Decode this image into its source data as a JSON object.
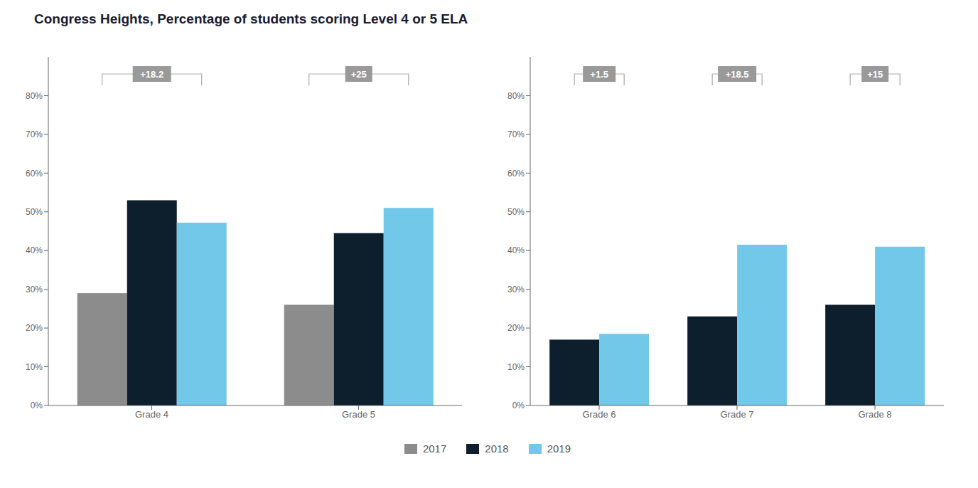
{
  "chart_data": [
    {
      "type": "bar",
      "title": "Congress Heights, Percentage of students scoring Level 4 or 5 ELA",
      "categories": [
        "Grade 4",
        "Grade 5"
      ],
      "series": [
        {
          "name": "2017",
          "color": "#8c8c8c",
          "values": [
            0.29,
            0.26
          ]
        },
        {
          "name": "2018",
          "color": "#0d1f2d",
          "values": [
            0.53,
            0.445
          ]
        },
        {
          "name": "2019",
          "color": "#72c8e8",
          "values": [
            0.472,
            0.51
          ]
        }
      ],
      "annotations": [
        "+18.2",
        "+25"
      ],
      "ylim": [
        0,
        0.9
      ],
      "yticks": [
        {
          "value": 0,
          "label": "0%"
        },
        {
          "value": 0.1,
          "label": "10%"
        },
        {
          "value": 0.2,
          "label": "20%"
        },
        {
          "value": 0.3,
          "label": "30%"
        },
        {
          "value": 0.4,
          "label": "40%"
        },
        {
          "value": 0.5,
          "label": "50%"
        },
        {
          "value": 0.6,
          "label": "60%"
        },
        {
          "value": 0.7,
          "label": "70%"
        },
        {
          "value": 0.8,
          "label": "80%"
        }
      ],
      "grid": false,
      "legend": "bottom"
    },
    {
      "type": "bar",
      "categories": [
        "Grade 6",
        "Grade 7",
        "Grade 8"
      ],
      "series": [
        {
          "name": "2018",
          "color": "#0d1f2d",
          "values": [
            0.17,
            0.23,
            0.26
          ]
        },
        {
          "name": "2019",
          "color": "#72c8e8",
          "values": [
            0.185,
            0.415,
            0.41
          ]
        }
      ],
      "annotations": [
        "+1.5",
        "+18.5",
        "+15"
      ],
      "ylim": [
        0,
        0.9
      ],
      "yticks": [
        {
          "value": 0,
          "label": "0%"
        },
        {
          "value": 0.1,
          "label": "10%"
        },
        {
          "value": 0.2,
          "label": "20%"
        },
        {
          "value": 0.3,
          "label": "30%"
        },
        {
          "value": 0.4,
          "label": "40%"
        },
        {
          "value": 0.5,
          "label": "50%"
        },
        {
          "value": 0.6,
          "label": "60%"
        },
        {
          "value": 0.7,
          "label": "70%"
        },
        {
          "value": 0.8,
          "label": "80%"
        }
      ],
      "grid": false,
      "legend": "bottom"
    }
  ]
}
